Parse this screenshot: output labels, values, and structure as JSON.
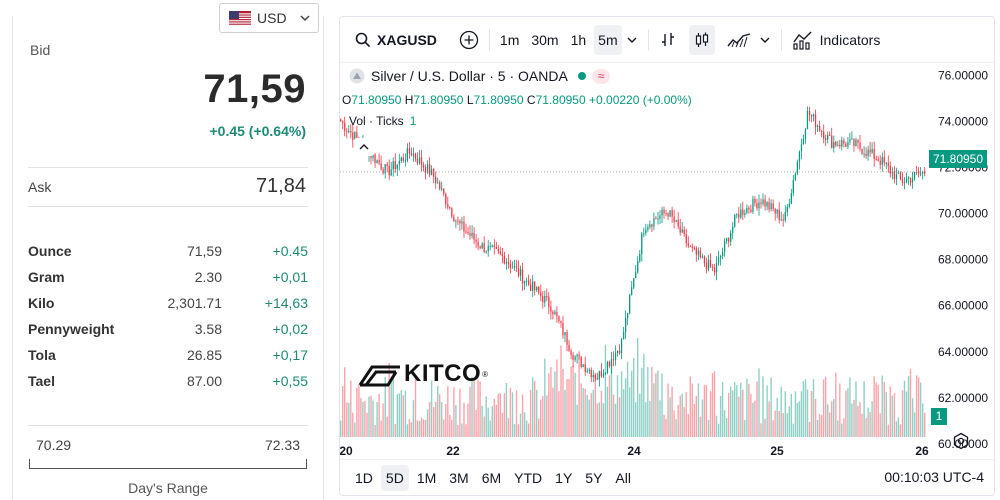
{
  "currency": {
    "code": "USD",
    "flag_icon": "us-flag-icon"
  },
  "quote": {
    "bid_label": "Bid",
    "bid_value": "71,59",
    "bid_change": "+0.45 (+0.64%)",
    "ask_label": "Ask",
    "ask_value": "71,84",
    "units": [
      {
        "name": "Ounce",
        "price": "71,59",
        "change": "+0.45"
      },
      {
        "name": "Gram",
        "price": "2.30",
        "change": "+0,01"
      },
      {
        "name": "Kilo",
        "price": "2,301.71",
        "change": "+14,63"
      },
      {
        "name": "Pennyweight",
        "price": "3.58",
        "change": "+0,02"
      },
      {
        "name": "Tola",
        "price": "26.85",
        "change": "+0,17"
      },
      {
        "name": "Tael",
        "price": "87.00",
        "change": "+0,55"
      }
    ],
    "range_low": "70.29",
    "range_high": "72.33",
    "range_label": "Day's Range"
  },
  "colors": {
    "up": "#089981",
    "down": "#f23645",
    "up_text": "#1e8a76"
  },
  "toolbar": {
    "symbol": "XAGUSD",
    "intervals": [
      "1m",
      "30m",
      "1h",
      "5m"
    ],
    "active_interval": "5m",
    "indicators_label": "Indicators"
  },
  "legend": {
    "title": "Silver / U.S. Dollar · 5 · OANDA",
    "badge": "≈",
    "ohlc": {
      "o_label": "O",
      "o": "71.80950",
      "h_label": "H",
      "h": "71.80950",
      "l_label": "L",
      "l": "71.80950",
      "c_label": "C",
      "c": "71.80950",
      "change": "+0.00220 (+0.00%)"
    },
    "vol_label": "Vol · Ticks",
    "vol_value": "1"
  },
  "last_price": "71.80950",
  "vol_tag": "1",
  "logo_text": "KITCO",
  "logo_reg": "®",
  "range_buttons": [
    "1D",
    "5D",
    "1M",
    "3M",
    "6M",
    "YTD",
    "1Y",
    "5Y",
    "All"
  ],
  "active_range": "5D",
  "clock": "00:10:03 UTC-4",
  "chart_data": {
    "type": "candlestick",
    "title": "Silver / U.S. Dollar · 5 · OANDA",
    "ylim": [
      60.3,
      76.8
    ],
    "yticks": [
      "76.00000",
      "74.00000",
      "72.00000",
      "70.00000",
      "68.00000",
      "66.00000",
      "64.00000",
      "62.00000",
      "60.00000"
    ],
    "xticks": [
      "20",
      "22",
      "24",
      "25",
      "26"
    ],
    "series": [
      {
        "name": "close",
        "x": [
          0,
          4,
          8,
          12,
          16,
          20,
          24,
          28,
          32,
          36,
          40,
          44,
          48,
          52,
          56,
          60,
          64,
          68,
          72,
          76,
          80,
          84,
          88,
          92,
          96,
          100
        ],
        "y": [
          74.0,
          72.9,
          71.8,
          72.7,
          71.6,
          69.6,
          68.6,
          68.1,
          67.0,
          66.0,
          63.8,
          62.9,
          64.3,
          69.5,
          70.1,
          68.4,
          67.5,
          70.0,
          70.6,
          69.7,
          74.4,
          73.1,
          73.0,
          72.4,
          71.4,
          71.8
        ]
      }
    ],
    "volume": {
      "label": "Vol · Ticks",
      "range": "low to moderate"
    },
    "last": 71.8095,
    "grid": false
  }
}
